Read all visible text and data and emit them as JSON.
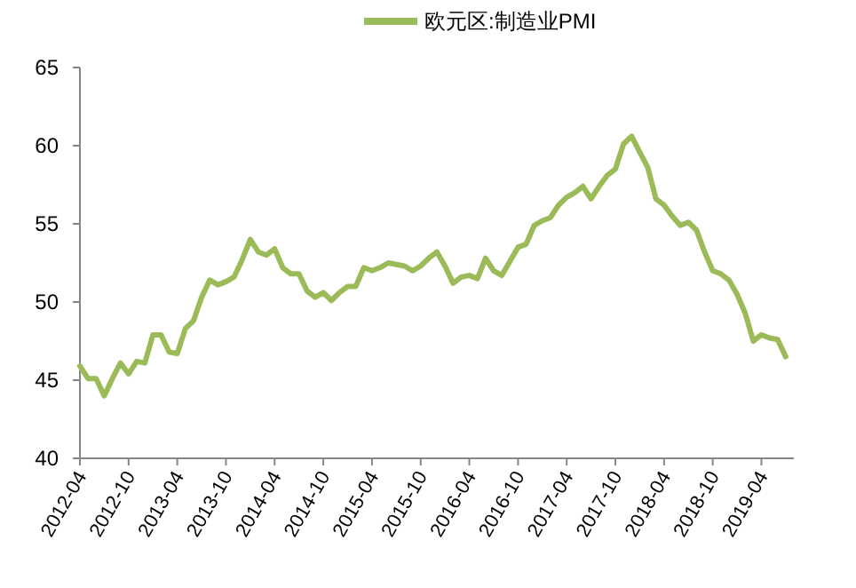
{
  "chart_data": {
    "type": "line",
    "legend": "top",
    "grid": false,
    "marker": "none",
    "line_style": "solid",
    "x": [
      "2012-04",
      "2012-05",
      "2012-06",
      "2012-07",
      "2012-08",
      "2012-09",
      "2012-10",
      "2012-11",
      "2012-12",
      "2013-01",
      "2013-02",
      "2013-03",
      "2013-04",
      "2013-05",
      "2013-06",
      "2013-07",
      "2013-08",
      "2013-09",
      "2013-10",
      "2013-11",
      "2013-12",
      "2014-01",
      "2014-02",
      "2014-03",
      "2014-04",
      "2014-05",
      "2014-06",
      "2014-07",
      "2014-08",
      "2014-09",
      "2014-10",
      "2014-11",
      "2014-12",
      "2015-01",
      "2015-02",
      "2015-03",
      "2015-04",
      "2015-05",
      "2015-06",
      "2015-07",
      "2015-08",
      "2015-09",
      "2015-10",
      "2015-11",
      "2015-12",
      "2016-01",
      "2016-02",
      "2016-03",
      "2016-04",
      "2016-05",
      "2016-06",
      "2016-07",
      "2016-08",
      "2016-09",
      "2016-10",
      "2016-11",
      "2016-12",
      "2017-01",
      "2017-02",
      "2017-03",
      "2017-04",
      "2017-05",
      "2017-06",
      "2017-07",
      "2017-08",
      "2017-09",
      "2017-10",
      "2017-11",
      "2017-12",
      "2018-01",
      "2018-02",
      "2018-03",
      "2018-04",
      "2018-05",
      "2018-06",
      "2018-07",
      "2018-08",
      "2018-09",
      "2018-10",
      "2018-11",
      "2018-12",
      "2019-01",
      "2019-02",
      "2019-03",
      "2019-04",
      "2019-05",
      "2019-06",
      "2019-07"
    ],
    "series": [
      {
        "name": "欧元区:制造业PMI",
        "color": "#9bbb59",
        "values": [
          45.9,
          45.1,
          45.1,
          44.0,
          45.1,
          46.1,
          45.4,
          46.2,
          46.1,
          47.9,
          47.9,
          46.8,
          46.7,
          48.3,
          48.8,
          50.3,
          51.4,
          51.1,
          51.3,
          51.6,
          52.7,
          54.0,
          53.2,
          53.0,
          53.4,
          52.2,
          51.8,
          51.8,
          50.7,
          50.3,
          50.6,
          50.1,
          50.6,
          51.0,
          51.0,
          52.2,
          52.0,
          52.2,
          52.5,
          52.4,
          52.3,
          52.0,
          52.3,
          52.8,
          53.2,
          52.3,
          51.2,
          51.6,
          51.7,
          51.5,
          52.8,
          52.0,
          51.7,
          52.6,
          53.5,
          53.7,
          54.9,
          55.2,
          55.4,
          56.2,
          56.7,
          57.0,
          57.4,
          56.6,
          57.4,
          58.1,
          58.5,
          60.1,
          60.6,
          59.6,
          58.6,
          56.6,
          56.2,
          55.5,
          54.9,
          55.1,
          54.6,
          53.2,
          52.0,
          51.8,
          51.4,
          50.5,
          49.3,
          47.5,
          47.9,
          47.7,
          47.6,
          46.5
        ]
      }
    ],
    "xlim": [
      "2012-04",
      "2019-08"
    ],
    "xticks": [
      "2012-04",
      "2012-10",
      "2013-04",
      "2013-10",
      "2014-04",
      "2014-10",
      "2015-04",
      "2015-10",
      "2016-04",
      "2016-10",
      "2017-04",
      "2017-10",
      "2018-04",
      "2018-10",
      "2019-04"
    ],
    "ylim": [
      40,
      65
    ],
    "yticks": [
      40,
      45,
      50,
      55,
      60,
      65
    ]
  }
}
